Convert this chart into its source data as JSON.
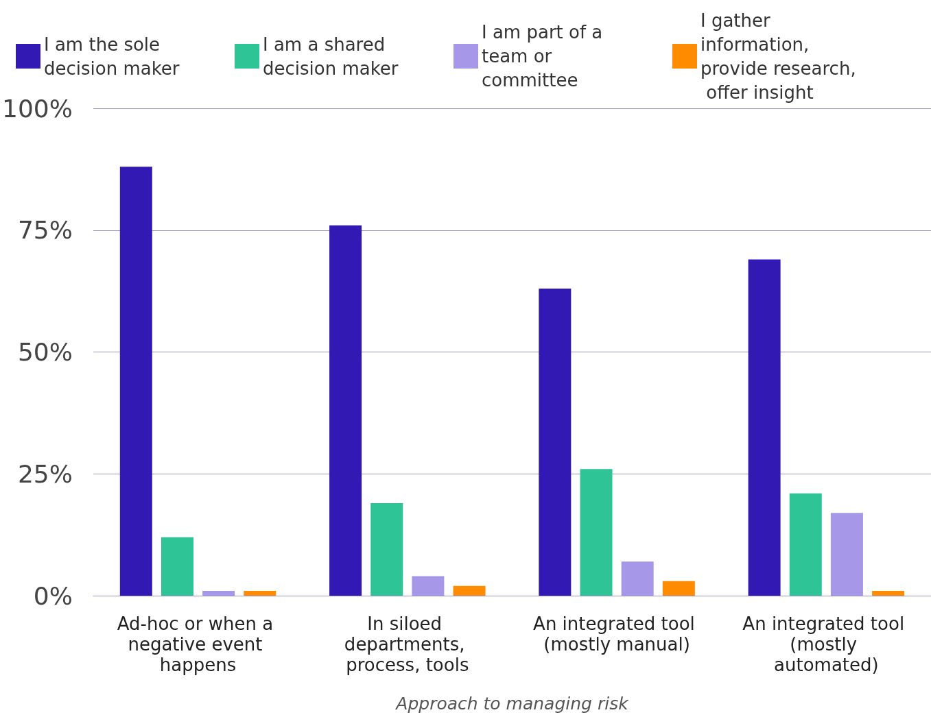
{
  "chart_data": {
    "type": "bar",
    "xlabel": "Approach to managing risk",
    "categories": [
      "Ad-hoc or when a negative event happens",
      "In siloed departments, process, tools",
      "An integrated tool (mostly manual)",
      "An integrated tool (mostly automated)"
    ],
    "series": [
      {
        "name": "I am the sole decision maker",
        "color": "#3219b4",
        "values": [
          88,
          76,
          63,
          69
        ]
      },
      {
        "name": "I am a shared decision maker",
        "color": "#2fc495",
        "values": [
          12,
          19,
          26,
          21
        ]
      },
      {
        "name": "I am part of a team or committee",
        "color": "#a797e8",
        "values": [
          1,
          4,
          7,
          17
        ]
      },
      {
        "name": "I gather information, provide research, offer insight",
        "color": "#ff8c00",
        "values": [
          1,
          2,
          3,
          1
        ]
      }
    ],
    "ylim": [
      0,
      100
    ],
    "yticks": [
      {
        "value": 0,
        "label": "0%"
      },
      {
        "value": 25,
        "label": "25%"
      },
      {
        "value": 50,
        "label": "50%"
      },
      {
        "value": 75,
        "label": "75%"
      },
      {
        "value": 100,
        "label": "100%"
      }
    ],
    "grid": "y",
    "legend": "top left"
  }
}
